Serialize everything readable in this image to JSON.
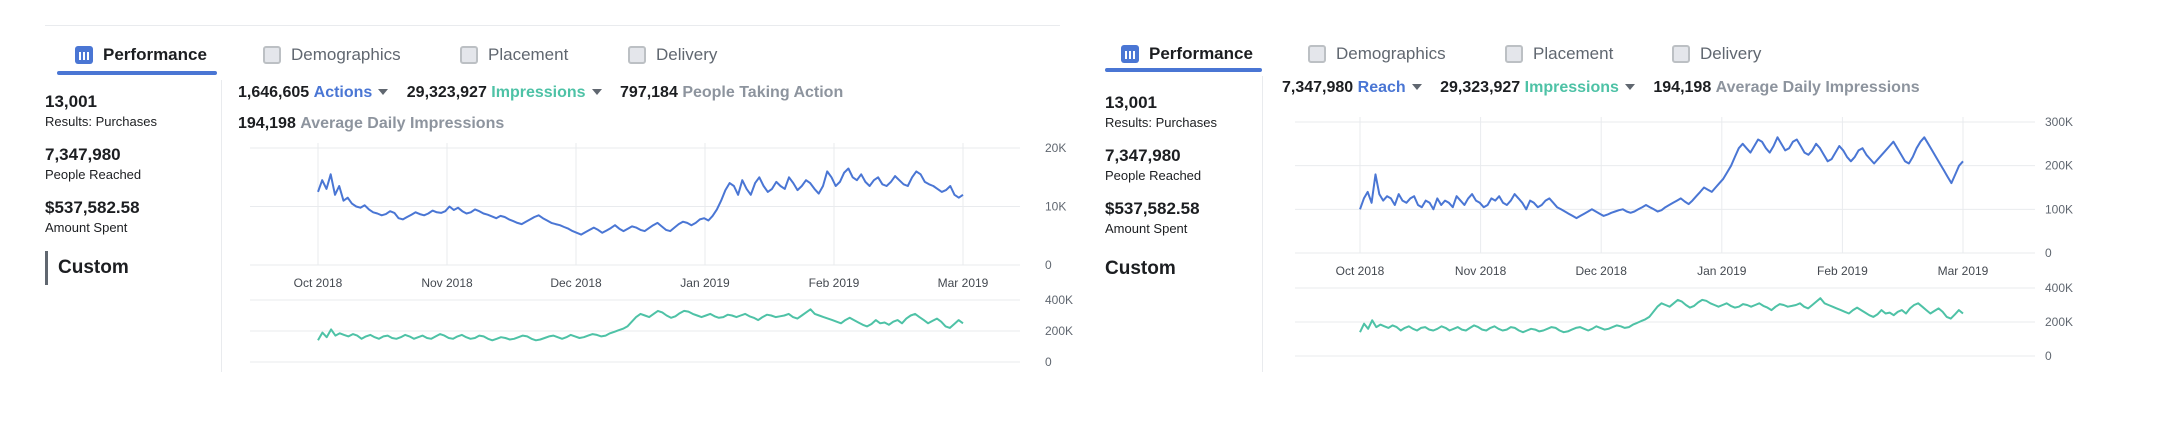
{
  "tabs": [
    {
      "label": "Performance",
      "icon": "bar-chart-icon",
      "active": true
    },
    {
      "label": "Demographics",
      "icon": "people-icon",
      "active": false
    },
    {
      "label": "Placement",
      "icon": "placement-icon",
      "active": false
    },
    {
      "label": "Delivery",
      "icon": "delivery-icon",
      "active": false
    }
  ],
  "sidebar": {
    "metrics": [
      {
        "value": "13,001",
        "label": "Results: Purchases"
      },
      {
        "value": "7,347,980",
        "label": "People Reached"
      },
      {
        "value": "$537,582.58",
        "label": "Amount Spent"
      }
    ],
    "custom_label": "Custom"
  },
  "left_panel": {
    "stats": {
      "actions_value": "1,646,605",
      "actions_label": "Actions",
      "impressions_value": "29,323,927",
      "impressions_label": "Impressions",
      "people_value": "797,184",
      "people_label": "People Taking Action",
      "daily_value": "194,198",
      "daily_label": "Average Daily Impressions"
    }
  },
  "right_panel": {
    "stats": {
      "reach_value": "7,347,980",
      "reach_label": "Reach",
      "impressions_value": "29,323,927",
      "impressions_label": "Impressions",
      "daily_value": "194,198",
      "daily_label": "Average Daily Impressions"
    }
  },
  "colors": {
    "accent": "#4a76d4",
    "teal": "#4ec2a6",
    "grid": "#e9ebee",
    "muted": "#8d949e"
  },
  "chart_data": [
    {
      "type": "line",
      "panel": "left",
      "name": "actions",
      "x_ticks": [
        "Oct 2018",
        "Nov 2018",
        "Dec 2018",
        "Jan 2019",
        "Feb 2019",
        "Mar 2019"
      ],
      "y_ticks": [
        "20K",
        "10K",
        "0"
      ],
      "ylim": [
        0,
        20000
      ],
      "color": "#4a76d4",
      "values": [
        12500,
        14500,
        13000,
        15500,
        12000,
        13500,
        11000,
        11500,
        10500,
        10000,
        9800,
        10200,
        9500,
        9000,
        8800,
        8500,
        8700,
        9200,
        8900,
        8000,
        7800,
        8200,
        8600,
        9000,
        8700,
        8500,
        8800,
        9300,
        9000,
        8900,
        9200,
        10000,
        9400,
        9800,
        9200,
        8800,
        9000,
        9500,
        9200,
        8800,
        8600,
        8300,
        8000,
        8400,
        8200,
        7800,
        7500,
        7200,
        7000,
        7400,
        7800,
        8200,
        8500,
        8000,
        7600,
        7200,
        7000,
        6800,
        6500,
        6200,
        5800,
        5500,
        5200,
        5600,
        6000,
        6400,
        6000,
        5500,
        5900,
        6300,
        6800,
        6200,
        5800,
        6200,
        6600,
        6400,
        6000,
        5800,
        6300,
        6800,
        7200,
        6600,
        6000,
        5800,
        6400,
        7000,
        7400,
        7200,
        6800,
        7200,
        7800,
        8000,
        7600,
        8400,
        9500,
        11000,
        12800,
        14000,
        13500,
        12000,
        14500,
        13000,
        12000,
        14000,
        15000,
        13500,
        12500,
        13000,
        14200,
        13500,
        13000,
        15000,
        14000,
        12800,
        13500,
        14500,
        14000,
        13000,
        12200,
        13500,
        16000,
        15000,
        13500,
        14200,
        15800,
        16500,
        15000,
        14500,
        15500,
        14200,
        13500,
        14500,
        15000,
        13800,
        13500,
        14200,
        15200,
        14500,
        13800,
        13500,
        15000,
        16000,
        15500,
        14200,
        13800,
        13500,
        13000,
        12500,
        12800,
        13500,
        12000,
        11500,
        12000
      ]
    },
    {
      "type": "line",
      "panel": "left",
      "name": "impressions",
      "x_ticks": [],
      "y_ticks": [
        "400K",
        "200K",
        "0"
      ],
      "ylim": [
        0,
        400000
      ],
      "color": "#4ec2a6",
      "values": [
        140000,
        190000,
        160000,
        210000,
        170000,
        185000,
        175000,
        165000,
        180000,
        170000,
        150000,
        165000,
        175000,
        160000,
        150000,
        165000,
        170000,
        155000,
        150000,
        160000,
        175000,
        165000,
        150000,
        160000,
        170000,
        155000,
        150000,
        165000,
        180000,
        170000,
        155000,
        150000,
        165000,
        175000,
        160000,
        150000,
        155000,
        170000,
        165000,
        150000,
        140000,
        150000,
        160000,
        155000,
        145000,
        150000,
        160000,
        170000,
        165000,
        150000,
        140000,
        145000,
        155000,
        165000,
        170000,
        160000,
        150000,
        160000,
        175000,
        165000,
        155000,
        160000,
        170000,
        180000,
        175000,
        165000,
        170000,
        185000,
        195000,
        205000,
        215000,
        230000,
        260000,
        290000,
        310000,
        300000,
        290000,
        310000,
        330000,
        320000,
        300000,
        285000,
        295000,
        315000,
        330000,
        325000,
        310000,
        300000,
        290000,
        300000,
        310000,
        295000,
        285000,
        290000,
        305000,
        300000,
        290000,
        300000,
        310000,
        295000,
        285000,
        270000,
        290000,
        305000,
        300000,
        290000,
        295000,
        300000,
        310000,
        290000,
        280000,
        300000,
        320000,
        340000,
        310000,
        300000,
        290000,
        280000,
        270000,
        260000,
        250000,
        270000,
        285000,
        270000,
        255000,
        240000,
        230000,
        245000,
        270000,
        250000,
        255000,
        240000,
        260000,
        270000,
        250000,
        280000,
        300000,
        310000,
        290000,
        270000,
        250000,
        265000,
        280000,
        260000,
        230000,
        220000,
        245000,
        270000,
        250000
      ]
    },
    {
      "type": "line",
      "panel": "right",
      "name": "reach",
      "x_ticks": [
        "Oct 2018",
        "Nov 2018",
        "Dec 2018",
        "Jan 2019",
        "Feb 2019",
        "Mar 2019"
      ],
      "y_ticks": [
        "300K",
        "200K",
        "100K",
        "0"
      ],
      "ylim": [
        0,
        300000
      ],
      "color": "#4a76d4",
      "values": [
        100000,
        125000,
        140000,
        115000,
        180000,
        135000,
        120000,
        130000,
        125000,
        110000,
        135000,
        120000,
        115000,
        125000,
        130000,
        110000,
        105000,
        120000,
        115000,
        100000,
        125000,
        110000,
        120000,
        115000,
        105000,
        130000,
        120000,
        110000,
        125000,
        135000,
        120000,
        115000,
        105000,
        110000,
        125000,
        120000,
        130000,
        115000,
        110000,
        120000,
        135000,
        125000,
        115000,
        100000,
        120000,
        115000,
        105000,
        110000,
        120000,
        125000,
        115000,
        105000,
        100000,
        95000,
        90000,
        85000,
        80000,
        85000,
        90000,
        95000,
        100000,
        95000,
        90000,
        85000,
        88000,
        92000,
        95000,
        98000,
        100000,
        95000,
        92000,
        95000,
        100000,
        105000,
        110000,
        105000,
        100000,
        95000,
        98000,
        105000,
        110000,
        115000,
        120000,
        125000,
        118000,
        112000,
        120000,
        130000,
        140000,
        150000,
        145000,
        140000,
        150000,
        160000,
        170000,
        185000,
        200000,
        220000,
        240000,
        250000,
        240000,
        230000,
        245000,
        260000,
        255000,
        240000,
        230000,
        245000,
        265000,
        250000,
        235000,
        240000,
        255000,
        260000,
        245000,
        230000,
        225000,
        235000,
        250000,
        240000,
        225000,
        210000,
        215000,
        230000,
        245000,
        235000,
        220000,
        210000,
        220000,
        235000,
        240000,
        225000,
        215000,
        205000,
        215000,
        225000,
        235000,
        245000,
        255000,
        240000,
        225000,
        210000,
        205000,
        220000,
        240000,
        255000,
        265000,
        250000,
        235000,
        220000,
        205000,
        190000,
        175000,
        160000,
        180000,
        200000,
        210000
      ]
    },
    {
      "type": "line",
      "panel": "right",
      "name": "impressions",
      "x_ticks": [],
      "y_ticks": [
        "400K",
        "200K",
        "0"
      ],
      "ylim": [
        0,
        400000
      ],
      "color": "#4ec2a6",
      "values": [
        140000,
        190000,
        160000,
        210000,
        170000,
        185000,
        175000,
        165000,
        180000,
        170000,
        150000,
        165000,
        175000,
        160000,
        150000,
        165000,
        170000,
        155000,
        150000,
        160000,
        175000,
        165000,
        150000,
        160000,
        170000,
        155000,
        150000,
        165000,
        180000,
        170000,
        155000,
        150000,
        165000,
        175000,
        160000,
        150000,
        155000,
        170000,
        165000,
        150000,
        140000,
        150000,
        160000,
        155000,
        145000,
        150000,
        160000,
        170000,
        165000,
        150000,
        140000,
        145000,
        155000,
        165000,
        170000,
        160000,
        150000,
        160000,
        175000,
        165000,
        155000,
        160000,
        170000,
        180000,
        175000,
        165000,
        170000,
        185000,
        195000,
        205000,
        215000,
        230000,
        260000,
        290000,
        310000,
        300000,
        290000,
        310000,
        330000,
        320000,
        300000,
        285000,
        295000,
        315000,
        330000,
        325000,
        310000,
        300000,
        290000,
        300000,
        310000,
        295000,
        285000,
        290000,
        305000,
        300000,
        290000,
        300000,
        310000,
        295000,
        285000,
        270000,
        290000,
        305000,
        300000,
        290000,
        295000,
        300000,
        310000,
        290000,
        280000,
        300000,
        320000,
        340000,
        310000,
        300000,
        290000,
        280000,
        270000,
        260000,
        250000,
        270000,
        285000,
        270000,
        255000,
        240000,
        230000,
        245000,
        270000,
        250000,
        255000,
        240000,
        260000,
        270000,
        250000,
        280000,
        300000,
        310000,
        290000,
        270000,
        250000,
        265000,
        280000,
        260000,
        230000,
        220000,
        245000,
        270000,
        250000
      ]
    }
  ]
}
